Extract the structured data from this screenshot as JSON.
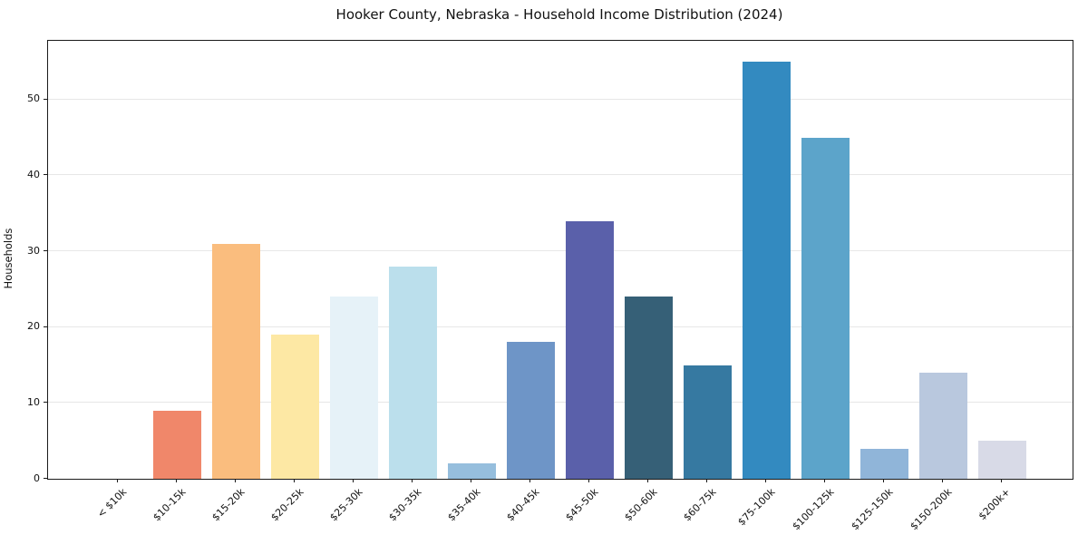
{
  "chart_data": {
    "type": "bar",
    "title": "Hooker County, Nebraska - Household Income Distribution (2024)",
    "xlabel": "",
    "ylabel": "Households",
    "categories": [
      "< $10k",
      "$10-15k",
      "$15-20k",
      "$20-25k",
      "$25-30k",
      "$30-35k",
      "$35-40k",
      "$40-45k",
      "$45-50k",
      "$50-60k",
      "$60-75k",
      "$75-100k",
      "$100-125k",
      "$125-150k",
      "$150-200k",
      "$200k+"
    ],
    "values": [
      0,
      9,
      31,
      19,
      24,
      28,
      2,
      18,
      34,
      24,
      15,
      55,
      45,
      4,
      14,
      5
    ],
    "bar_colors": [
      null,
      "#f0876a",
      "#fabd7e",
      "#fde8a4",
      "#e6f2f8",
      "#bbdfec",
      "#96bedd",
      "#6e95c7",
      "#5a60aa",
      "#366077",
      "#3679a1",
      "#338ac0",
      "#5ca4ca",
      "#90b5d9",
      "#b9c8de",
      "#d8dae7"
    ],
    "ylim": [
      0,
      57.75
    ],
    "yticks": [
      0,
      10,
      20,
      30,
      40,
      50
    ],
    "grid": "horizontal",
    "legend": "none",
    "background": "#ffffff",
    "axis_color": "#1a1a1a",
    "gridline_color": "#e7e7e7"
  }
}
